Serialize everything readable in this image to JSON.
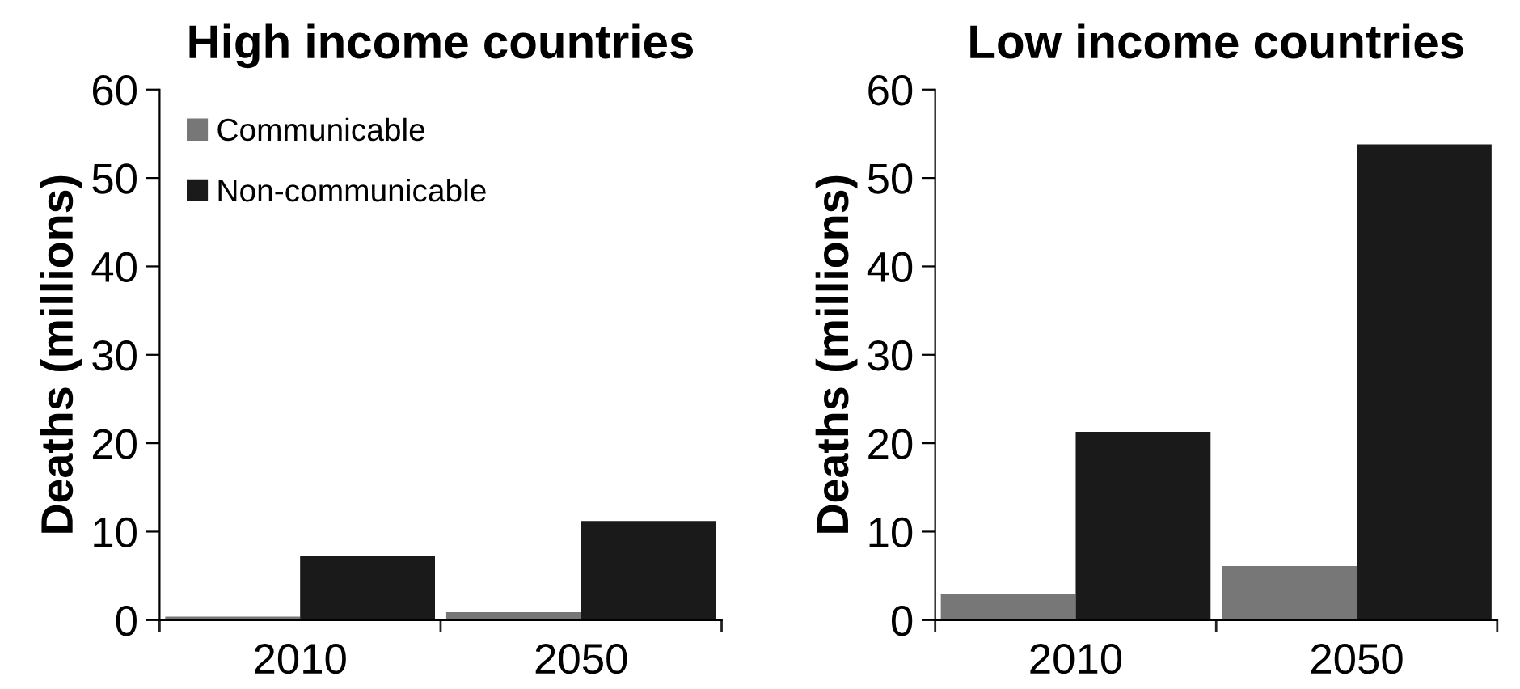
{
  "chart_data": [
    {
      "type": "bar",
      "title": "High income countries",
      "ylabel": "Deaths (millions)",
      "categories": [
        "2010",
        "2050"
      ],
      "ylim": [
        0,
        60
      ],
      "yticks": [
        0,
        10,
        20,
        30,
        40,
        50,
        60
      ],
      "legend": "top left",
      "grid": false,
      "series": [
        {
          "name": "Communicable",
          "color": "#777777",
          "values": [
            0.4,
            0.9
          ]
        },
        {
          "name": "Non-communicable",
          "color": "#1a1a1a",
          "values": [
            7.2,
            11.2
          ]
        }
      ]
    },
    {
      "type": "bar",
      "title": "Low income countries",
      "ylabel": "Deaths (millions)",
      "categories": [
        "2010",
        "2050"
      ],
      "ylim": [
        0,
        60
      ],
      "yticks": [
        0,
        10,
        20,
        30,
        40,
        50,
        60
      ],
      "grid": false,
      "series": [
        {
          "color": "#777777",
          "values": [
            2.9,
            6.1
          ]
        },
        {
          "color": "#1a1a1a",
          "values": [
            21.3,
            53.8
          ]
        }
      ]
    }
  ]
}
